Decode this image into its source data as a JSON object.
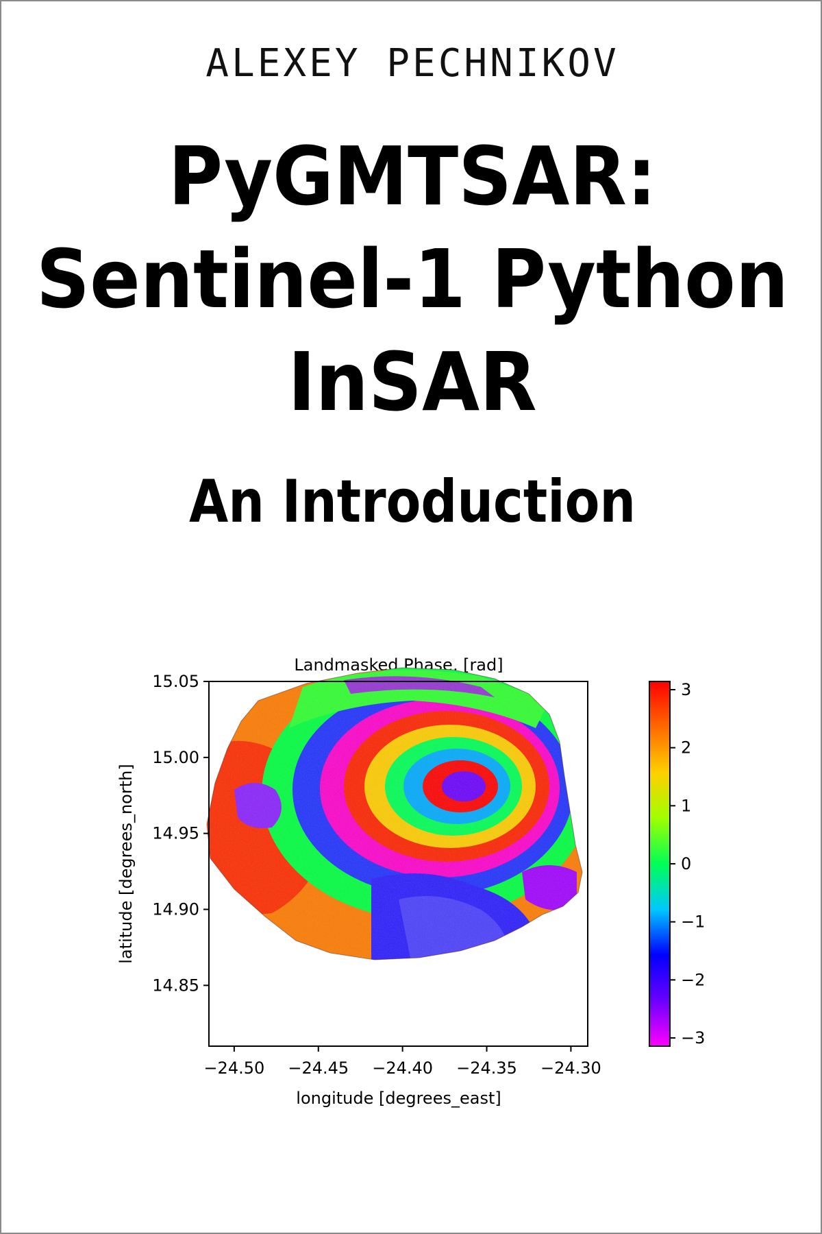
{
  "cover": {
    "author": "ALEXEY PECHNIKOV",
    "title_lines": [
      "PyGMTSAR:",
      "Sentinel-1 Python",
      "InSAR"
    ],
    "subtitle": "An Introduction"
  },
  "chart_data": {
    "type": "heatmap",
    "title": "Landmasked Phase, [rad]",
    "xlabel": "longitude [degrees_east]",
    "ylabel": "latitude [degrees_north]",
    "xlim": [
      -24.515,
      -24.29
    ],
    "ylim": [
      14.81,
      15.05
    ],
    "xticks": [
      -24.5,
      -24.45,
      -24.4,
      -24.35,
      -24.3
    ],
    "xtick_labels": [
      "−24.50",
      "−24.45",
      "−24.40",
      "−24.35",
      "−24.30"
    ],
    "yticks": [
      15.05,
      15.0,
      14.95,
      14.9,
      14.85
    ],
    "ytick_labels": [
      "15.05",
      "15.00",
      "14.95",
      "14.90",
      "14.85"
    ],
    "colorbar": {
      "colormap": "gist_rainbow_r",
      "range": [
        -3.14159,
        3.14159
      ],
      "ticks": [
        3,
        2,
        1,
        0,
        -1,
        -2,
        -3
      ],
      "tick_labels": [
        "3",
        "2",
        "1",
        "0",
        "−1",
        "−2",
        "−3"
      ],
      "colors": [
        "#ff00ff",
        "#6a00ff",
        "#0000ff",
        "#00c8ff",
        "#00ff55",
        "#a0ff00",
        "#ffd000",
        "#ff6a00",
        "#ff0000"
      ]
    },
    "grid": false
  }
}
